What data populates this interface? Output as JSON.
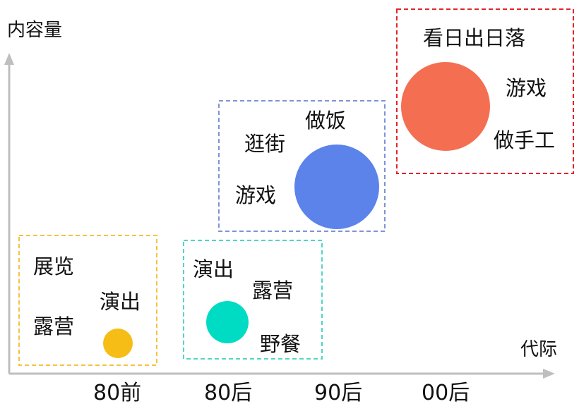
{
  "axes": {
    "y_label": "内容量",
    "x_label": "代际",
    "color": "#bfbfbf"
  },
  "categories": [
    "80前",
    "80后",
    "90后",
    "00后"
  ],
  "groups": [
    {
      "generation": "80前",
      "box_color": "#f5c242",
      "bubble_color": "#f6bd16",
      "activities": [
        "展览",
        "露营",
        "演出"
      ]
    },
    {
      "generation": "80后",
      "box_color": "#52d6c2",
      "bubble_color": "#00dcc3",
      "activities": [
        "演出",
        "露营",
        "野餐"
      ]
    },
    {
      "generation": "90后",
      "box_color": "#8093d8",
      "bubble_color": "#5b83ea",
      "activities": [
        "做饭",
        "逛街",
        "游戏"
      ]
    },
    {
      "generation": "00后",
      "box_color": "#e0252c",
      "bubble_color": "#f46f52",
      "activities": [
        "看日出日落",
        "游戏",
        "做手工"
      ]
    }
  ]
}
